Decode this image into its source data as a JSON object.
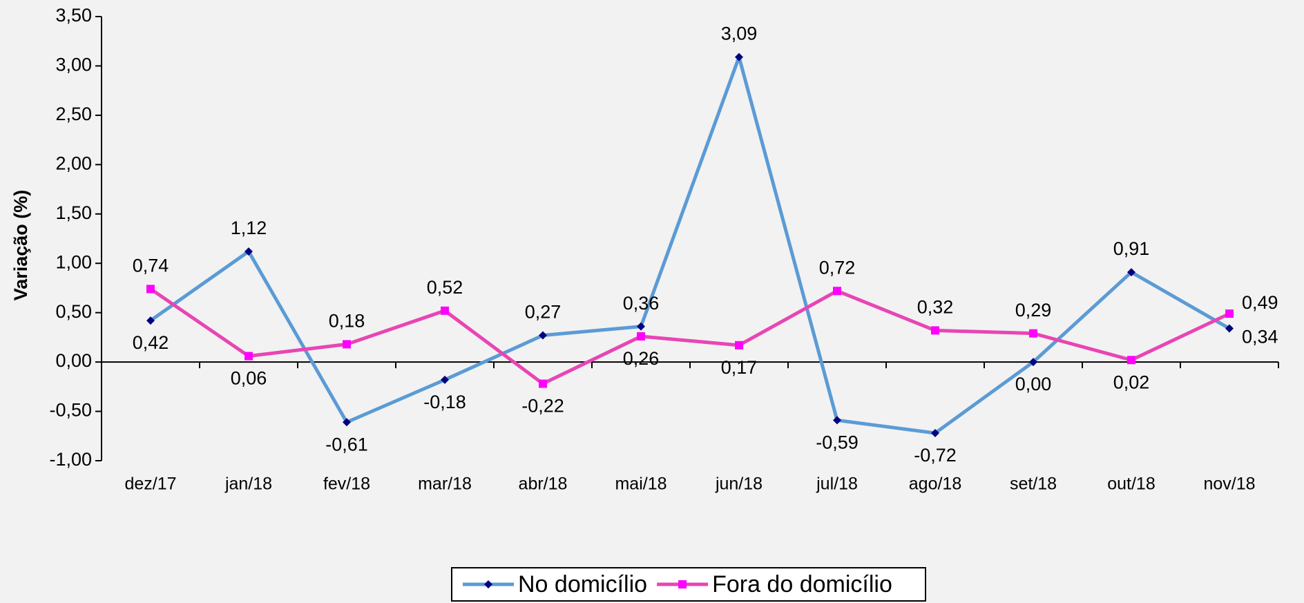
{
  "chart_data": {
    "type": "line",
    "y_label": "Variação (%)",
    "categories": [
      "dez/17",
      "jan/18",
      "fev/18",
      "mar/18",
      "abr/18",
      "mai/18",
      "jun/18",
      "jul/18",
      "ago/18",
      "set/18",
      "out/18",
      "nov/18"
    ],
    "series": [
      {
        "name": "No domicílio",
        "color": "#5b9bd5",
        "marker_color": "#000080",
        "marker": "diamond",
        "values": [
          0.42,
          1.12,
          -0.61,
          -0.18,
          0.27,
          0.36,
          3.09,
          -0.59,
          -0.72,
          0.0,
          0.91,
          0.34
        ],
        "value_labels": [
          "0,42",
          "1,12",
          "-0,61",
          "-0,18",
          "0,27",
          "0,36",
          "3,09",
          "-0,59",
          "-0,72",
          "0,00",
          "0,91",
          "0,34"
        ]
      },
      {
        "name": "Fora do domicílio",
        "color": "#e845b4",
        "marker_color": "#ff00ff",
        "marker": "square",
        "values": [
          0.74,
          0.06,
          0.18,
          0.52,
          -0.22,
          0.26,
          0.17,
          0.72,
          0.32,
          0.29,
          0.02,
          0.49
        ],
        "value_labels": [
          "0,74",
          "0,06",
          "0,18",
          "0,52",
          "-0,22",
          "0,26",
          "0,17",
          "0,72",
          "0,32",
          "0,29",
          "0,02",
          "0,49"
        ]
      }
    ],
    "ylim": [
      -1.0,
      3.5
    ],
    "yticks": [
      {
        "value": -1.0,
        "label": "-1,00"
      },
      {
        "value": -0.5,
        "label": "-0,50"
      },
      {
        "value": 0,
        "label": "0,00"
      },
      {
        "value": 0.5,
        "label": "0,50"
      },
      {
        "value": 1.0,
        "label": "1,00"
      },
      {
        "value": 1.5,
        "label": "1,50"
      },
      {
        "value": 2.0,
        "label": "2,00"
      },
      {
        "value": 2.5,
        "label": "2,50"
      },
      {
        "value": 3.0,
        "label": "3,00"
      },
      {
        "value": 3.5,
        "label": "3,50"
      }
    ],
    "grid": false,
    "legend": "bottom"
  }
}
